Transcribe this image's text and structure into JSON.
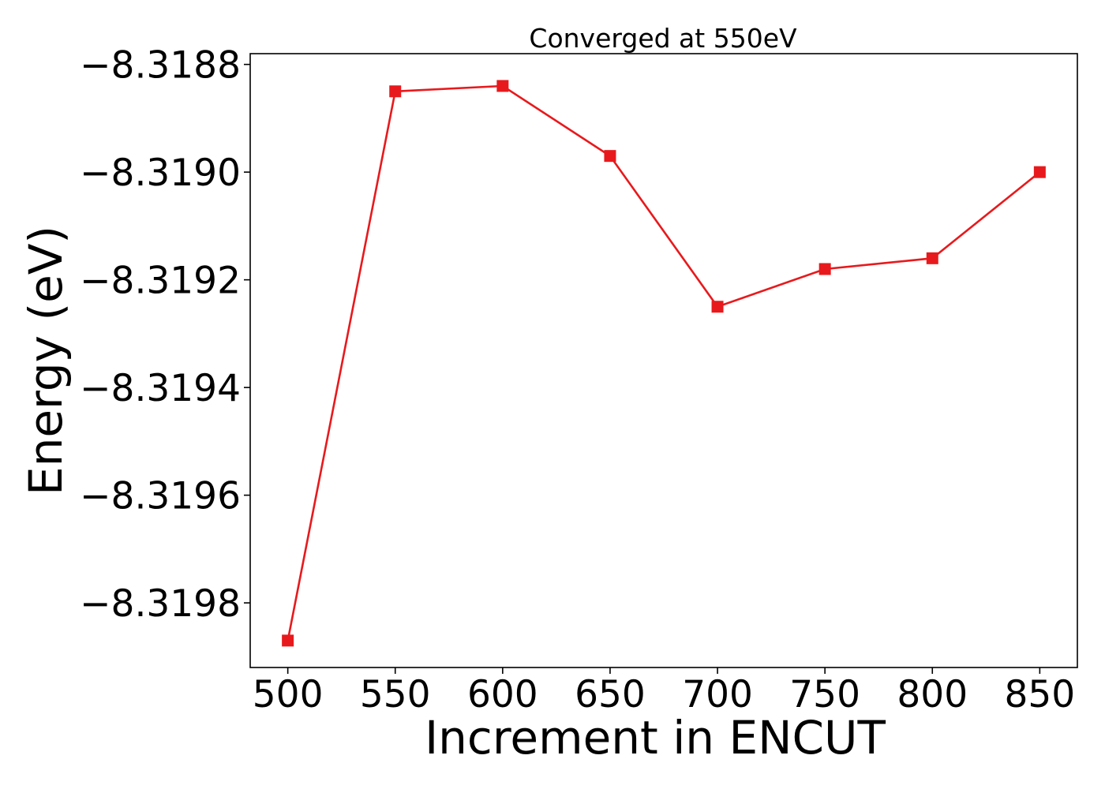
{
  "chart_data": {
    "type": "line",
    "title": "Converged at 550eV",
    "xlabel": "Increment in ENCUT",
    "ylabel": "Energy (eV)",
    "x": [
      500,
      550,
      600,
      650,
      700,
      750,
      800,
      850
    ],
    "series": [
      {
        "values": [
          -8.31987,
          -8.31885,
          -8.31884,
          -8.31897,
          -8.31925,
          -8.31918,
          -8.31916,
          -8.319
        ],
        "color": "#e8191c",
        "marker": "square"
      }
    ],
    "xticks": [
      500,
      550,
      600,
      650,
      700,
      750,
      800,
      850
    ],
    "xtick_labels": [
      "500",
      "550",
      "600",
      "650",
      "700",
      "750",
      "800",
      "850"
    ],
    "yticks": [
      -8.3188,
      -8.319,
      -8.3192,
      -8.3194,
      -8.3196,
      -8.3198
    ],
    "ytick_labels": [
      "−8.3188",
      "−8.3190",
      "−8.3192",
      "−8.3194",
      "−8.3196",
      "−8.3198"
    ],
    "xlim": [
      482.5,
      867.5
    ],
    "ylim": [
      -8.31992,
      -8.31878
    ],
    "grid": false,
    "legend": false
  }
}
